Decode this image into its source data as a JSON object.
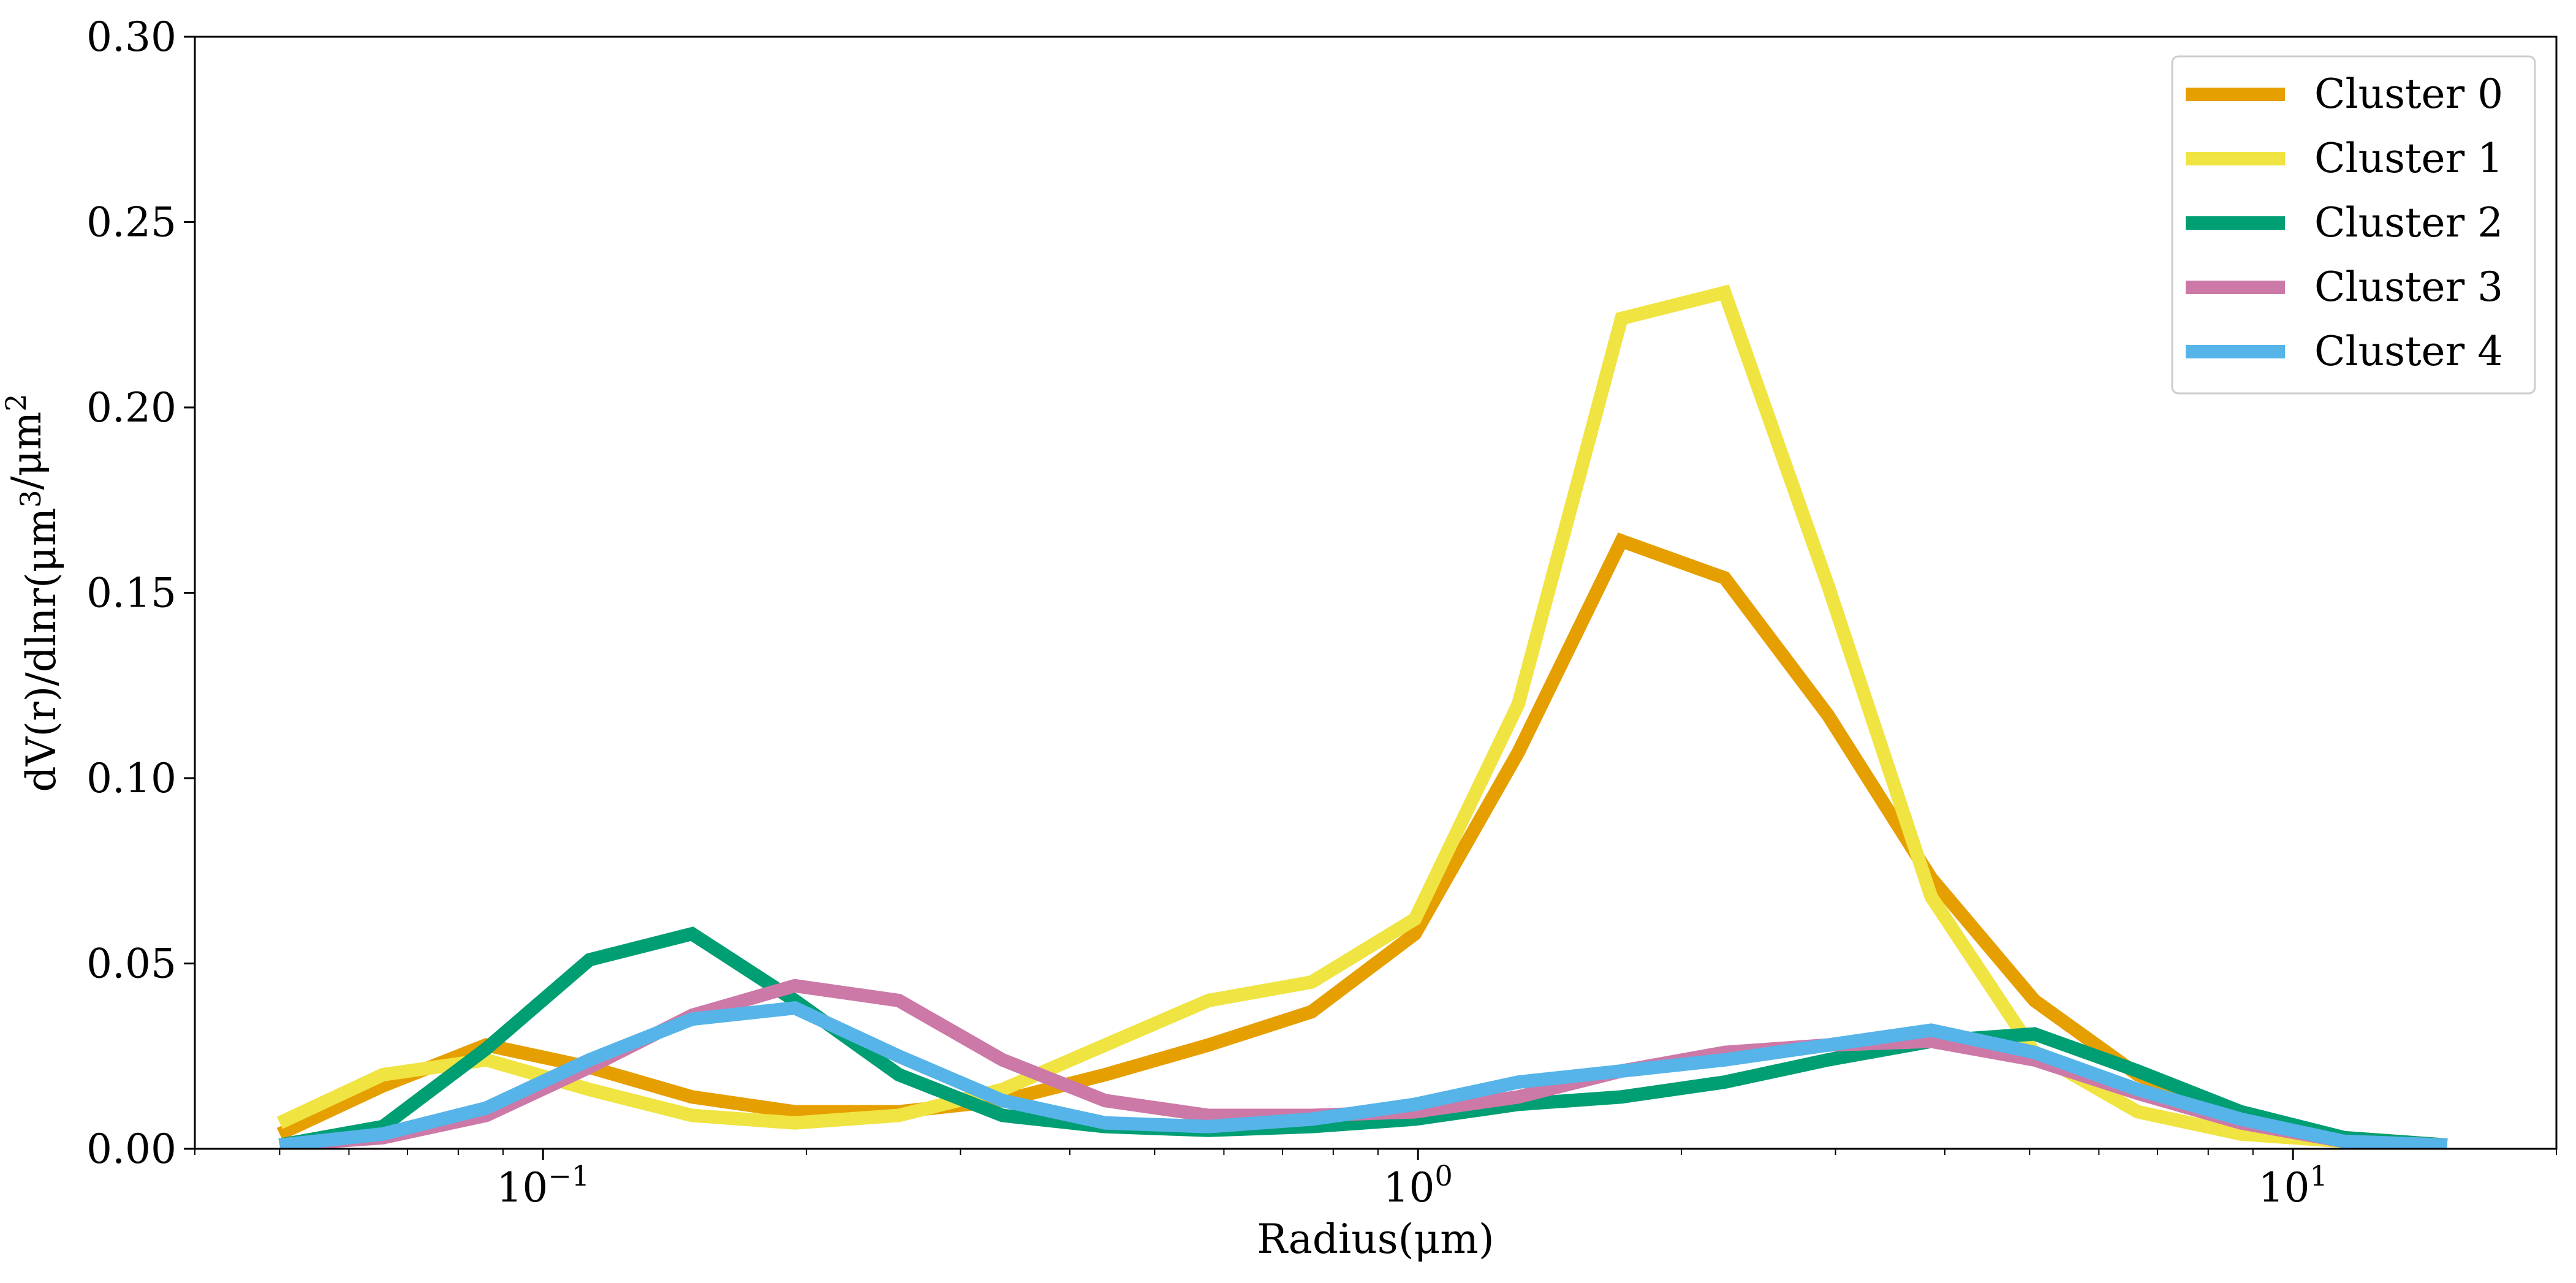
{
  "chart_data": {
    "type": "line",
    "title": "",
    "xlabel": "Radius(μm)",
    "ylabel": "dV(r)/dlnr(μm³/μm²",
    "x_scale": "log",
    "xlim": [
      0.04,
      20
    ],
    "ylim": [
      0,
      0.3
    ],
    "grid": false,
    "legend_position": "top-right",
    "x_ticks": [
      {
        "value": 0.1,
        "base": "10",
        "exp": "−1"
      },
      {
        "value": 1,
        "base": "10",
        "exp": "0"
      },
      {
        "value": 10,
        "base": "10",
        "exp": "1"
      }
    ],
    "y_ticks": [
      {
        "value": 0.0,
        "label": "0.00"
      },
      {
        "value": 0.05,
        "label": "0.05"
      },
      {
        "value": 0.1,
        "label": "0.10"
      },
      {
        "value": 0.15,
        "label": "0.15"
      },
      {
        "value": 0.2,
        "label": "0.20"
      },
      {
        "value": 0.25,
        "label": "0.25"
      },
      {
        "value": 0.3,
        "label": "0.30"
      }
    ],
    "x": [
      0.05,
      0.0656,
      0.0861,
      0.113,
      0.148,
      0.194,
      0.255,
      0.335,
      0.439,
      0.576,
      0.756,
      0.992,
      1.302,
      1.708,
      2.241,
      2.941,
      3.859,
      5.064,
      6.644,
      8.717,
      11.44,
      15.0
    ],
    "series": [
      {
        "name": "Cluster 0",
        "color": "#E69F00",
        "values": [
          0.004,
          0.017,
          0.028,
          0.022,
          0.014,
          0.01,
          0.01,
          0.013,
          0.02,
          0.028,
          0.037,
          0.058,
          0.107,
          0.164,
          0.154,
          0.117,
          0.073,
          0.04,
          0.02,
          0.008,
          0.003,
          0.001
        ]
      },
      {
        "name": "Cluster 1",
        "color": "#F0E442",
        "values": [
          0.007,
          0.02,
          0.024,
          0.016,
          0.009,
          0.007,
          0.009,
          0.016,
          0.028,
          0.04,
          0.045,
          0.062,
          0.12,
          0.224,
          0.231,
          0.152,
          0.068,
          0.026,
          0.01,
          0.004,
          0.002,
          0.001
        ]
      },
      {
        "name": "Cluster 2",
        "color": "#009E73",
        "values": [
          0.001,
          0.006,
          0.027,
          0.051,
          0.058,
          0.04,
          0.02,
          0.009,
          0.006,
          0.005,
          0.006,
          0.008,
          0.012,
          0.014,
          0.018,
          0.024,
          0.029,
          0.031,
          0.021,
          0.01,
          0.003,
          0.001
        ]
      },
      {
        "name": "Cluster 3",
        "color": "#CC79A7",
        "values": [
          0.001,
          0.003,
          0.009,
          0.022,
          0.036,
          0.044,
          0.04,
          0.024,
          0.013,
          0.009,
          0.009,
          0.01,
          0.014,
          0.021,
          0.026,
          0.028,
          0.029,
          0.024,
          0.015,
          0.007,
          0.002,
          0.001
        ]
      },
      {
        "name": "Cluster 4",
        "color": "#56B4E9",
        "values": [
          0.001,
          0.004,
          0.011,
          0.024,
          0.035,
          0.038,
          0.025,
          0.013,
          0.007,
          0.006,
          0.008,
          0.012,
          0.018,
          0.021,
          0.024,
          0.028,
          0.032,
          0.026,
          0.016,
          0.008,
          0.002,
          0.001
        ]
      }
    ]
  }
}
